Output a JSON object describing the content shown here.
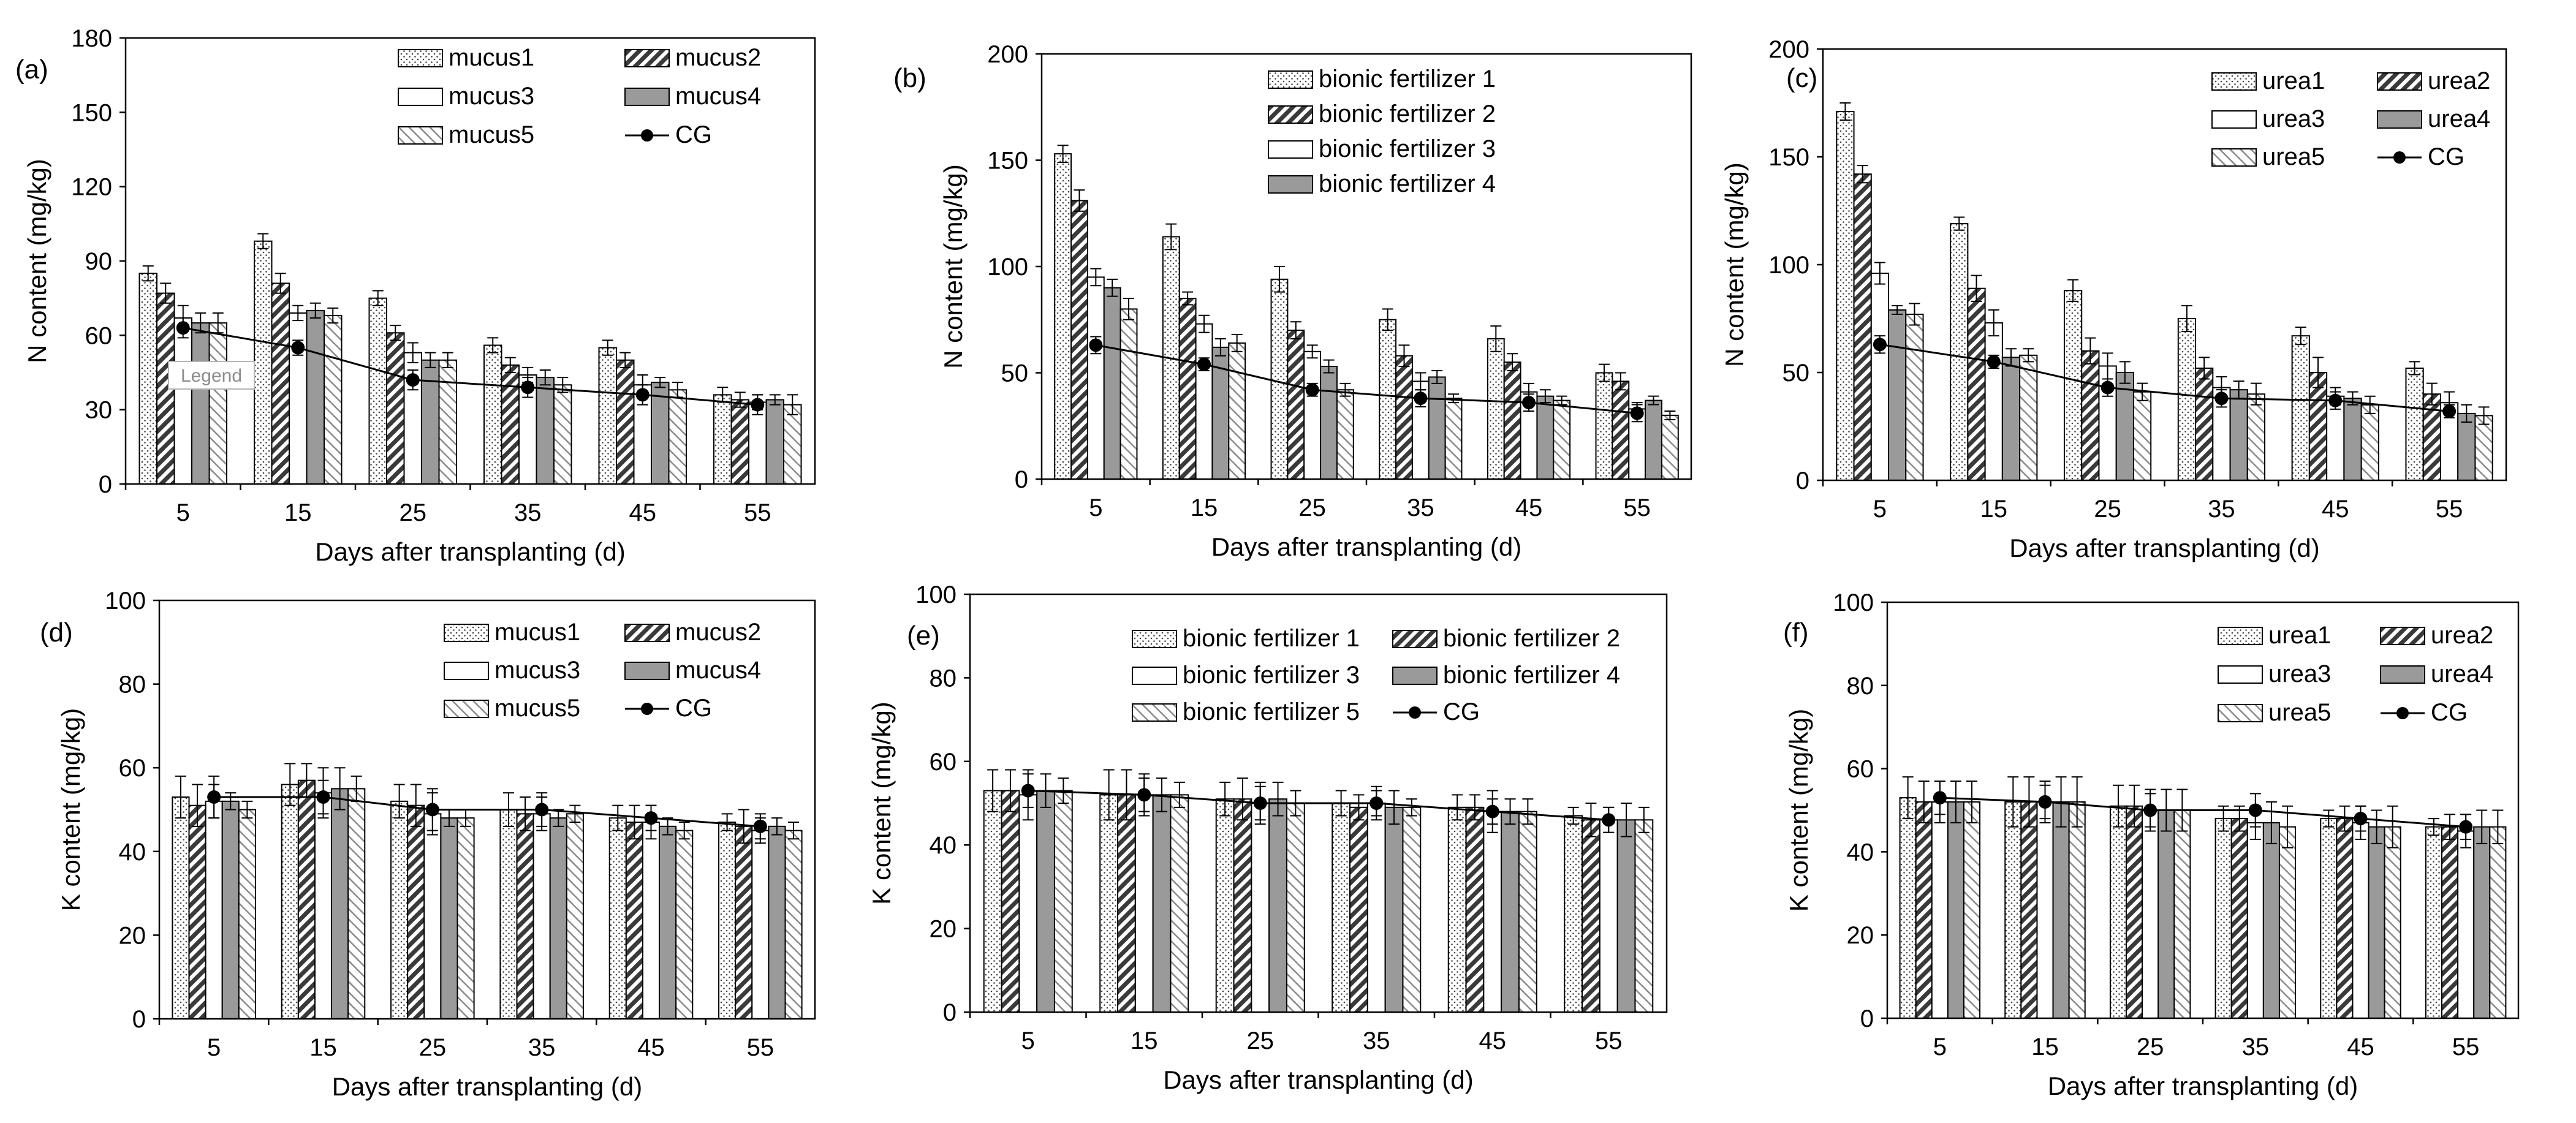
{
  "figure": {
    "watermark": "Legend"
  },
  "chart_data": [
    {
      "panel_label": "(a)",
      "type": "bar",
      "ylabel": "N content (mg/kg)",
      "xlabel": "Days after transplanting (d)",
      "categories": [
        "5",
        "15",
        "25",
        "35",
        "45",
        "55"
      ],
      "ylim": [
        0,
        180
      ],
      "yticks": [
        0,
        30,
        60,
        90,
        120,
        150,
        180
      ],
      "legend_position": "top-right",
      "grid": false,
      "series": [
        {
          "name": "mucus1",
          "pattern": "dots",
          "values": [
            85,
            98,
            75,
            56,
            55,
            36
          ],
          "errors": [
            3,
            3,
            3,
            3,
            3,
            3
          ]
        },
        {
          "name": "mucus2",
          "pattern": "diag",
          "values": [
            77,
            81,
            61,
            48,
            50,
            34
          ],
          "errors": [
            4,
            4,
            3,
            3,
            3,
            3
          ]
        },
        {
          "name": "mucus3",
          "pattern": "blank",
          "values": [
            67,
            69,
            53,
            44,
            40,
            33
          ],
          "errors": [
            5,
            3,
            4,
            3,
            4,
            3
          ]
        },
        {
          "name": "mucus4",
          "pattern": "gray",
          "values": [
            65,
            70,
            50,
            43,
            41,
            34
          ],
          "errors": [
            4,
            3,
            3,
            3,
            2,
            2
          ]
        },
        {
          "name": "mucus5",
          "pattern": "cross",
          "values": [
            65,
            68,
            50,
            40,
            38,
            32
          ],
          "errors": [
            4,
            3,
            3,
            3,
            3,
            4
          ]
        }
      ],
      "line": {
        "name": "CG",
        "values": [
          63,
          55,
          42,
          39,
          36,
          32
        ],
        "errors": [
          4,
          3,
          4,
          4,
          4,
          4
        ]
      }
    },
    {
      "panel_label": "(b)",
      "type": "bar",
      "ylabel": "N content (mg/kg)",
      "xlabel": "Days after transplanting (d)",
      "categories": [
        "5",
        "15",
        "25",
        "35",
        "45",
        "55"
      ],
      "ylim": [
        0,
        200
      ],
      "yticks": [
        0,
        50,
        100,
        150,
        200
      ],
      "legend_position": "top-right",
      "grid": false,
      "series": [
        {
          "name": "bionic fertilizer 1",
          "pattern": "dots",
          "values": [
            153,
            114,
            94,
            75,
            66,
            50
          ],
          "errors": [
            4,
            6,
            6,
            5,
            6,
            4
          ]
        },
        {
          "name": "bionic fertilizer 2",
          "pattern": "diag",
          "values": [
            131,
            85,
            70,
            58,
            55,
            46
          ],
          "errors": [
            5,
            3,
            4,
            5,
            4,
            4
          ]
        },
        {
          "name": "bionic fertilizer 3",
          "pattern": "blank",
          "values": [
            95,
            73,
            60,
            46,
            41,
            33
          ],
          "errors": [
            4,
            4,
            3,
            4,
            4,
            3
          ]
        },
        {
          "name": "bionic fertilizer 4",
          "pattern": "gray",
          "values": [
            90,
            62,
            53,
            48,
            39,
            37
          ],
          "errors": [
            4,
            4,
            3,
            3,
            3,
            2
          ]
        },
        {
          "name": "",
          "pattern": "cross",
          "values": [
            80,
            64,
            42,
            38,
            37,
            30
          ],
          "errors": [
            5,
            4,
            3,
            2,
            2,
            2
          ]
        }
      ],
      "line": {
        "name": "",
        "values": [
          63,
          54,
          42,
          38,
          36,
          31
        ],
        "errors": [
          4,
          3,
          3,
          4,
          4,
          4
        ]
      }
    },
    {
      "panel_label": "(c)",
      "type": "bar",
      "ylabel": "N content (mg/kg)",
      "xlabel": "Days after transplanting (d)",
      "categories": [
        "5",
        "15",
        "25",
        "35",
        "45",
        "55"
      ],
      "ylim": [
        0,
        200
      ],
      "yticks": [
        0,
        50,
        100,
        150,
        200
      ],
      "legend_position": "top-right",
      "grid": false,
      "series": [
        {
          "name": "urea1",
          "pattern": "dots",
          "values": [
            171,
            119,
            88,
            75,
            67,
            52
          ],
          "errors": [
            4,
            3,
            5,
            6,
            4,
            3
          ]
        },
        {
          "name": "urea2",
          "pattern": "diag",
          "values": [
            142,
            89,
            60,
            52,
            50,
            40
          ],
          "errors": [
            4,
            6,
            6,
            5,
            7,
            5
          ]
        },
        {
          "name": "urea3",
          "pattern": "blank",
          "values": [
            96,
            73,
            53,
            43,
            39,
            36
          ],
          "errors": [
            5,
            6,
            6,
            5,
            4,
            5
          ]
        },
        {
          "name": "urea4",
          "pattern": "gray",
          "values": [
            79,
            57,
            50,
            42,
            38,
            31
          ],
          "errors": [
            2,
            4,
            5,
            4,
            3,
            4
          ]
        },
        {
          "name": "urea5",
          "pattern": "cross",
          "values": [
            77,
            58,
            41,
            40,
            35,
            30
          ],
          "errors": [
            5,
            3,
            4,
            5,
            4,
            4
          ]
        }
      ],
      "line": {
        "name": "CG",
        "values": [
          63,
          55,
          43,
          38,
          37,
          32
        ],
        "errors": [
          4,
          3,
          4,
          4,
          4,
          3
        ]
      }
    },
    {
      "panel_label": "(d)",
      "type": "bar",
      "ylabel": "K content (mg/kg)",
      "xlabel": "Days after transplanting (d)",
      "categories": [
        "5",
        "15",
        "25",
        "35",
        "45",
        "55"
      ],
      "ylim": [
        0,
        100
      ],
      "yticks": [
        0,
        20,
        40,
        60,
        80,
        100
      ],
      "legend_position": "top-right",
      "grid": false,
      "series": [
        {
          "name": "mucus1",
          "pattern": "dots",
          "values": [
            53,
            56,
            52,
            50,
            48,
            47
          ],
          "errors": [
            5,
            5,
            4,
            4,
            3,
            2
          ]
        },
        {
          "name": "mucus2",
          "pattern": "diag",
          "values": [
            51,
            57,
            51,
            49,
            47,
            46
          ],
          "errors": [
            5,
            4,
            5,
            4,
            4,
            4
          ]
        },
        {
          "name": "mucus3",
          "pattern": "blank",
          "values": [
            52,
            54,
            49,
            49,
            47,
            45
          ],
          "errors": [
            4,
            6,
            5,
            4,
            4,
            3
          ]
        },
        {
          "name": "mucus4",
          "pattern": "gray",
          "values": [
            52,
            55,
            48,
            48,
            46,
            46
          ],
          "errors": [
            2,
            5,
            2,
            2,
            2,
            2
          ]
        },
        {
          "name": "mucus5",
          "pattern": "cross",
          "values": [
            50,
            55,
            48,
            49,
            45,
            45
          ],
          "errors": [
            2,
            3,
            2,
            2,
            2,
            2
          ]
        }
      ],
      "line": {
        "name": "CG",
        "values": [
          53,
          53,
          50,
          50,
          48,
          46
        ],
        "errors": [
          5,
          4,
          5,
          4,
          3,
          3
        ]
      }
    },
    {
      "panel_label": "(e)",
      "type": "bar",
      "ylabel": "K content (mg/kg)",
      "xlabel": "Days after transplanting (d)",
      "categories": [
        "5",
        "15",
        "25",
        "35",
        "45",
        "55"
      ],
      "ylim": [
        0,
        100
      ],
      "yticks": [
        0,
        20,
        40,
        60,
        80,
        100
      ],
      "legend_position": "top-right",
      "grid": false,
      "series": [
        {
          "name": "bionic fertilizer 1",
          "pattern": "dots",
          "values": [
            53,
            52,
            51,
            50,
            49,
            47
          ],
          "errors": [
            5,
            6,
            4,
            3,
            3,
            2
          ]
        },
        {
          "name": "bionic fertilizer 2",
          "pattern": "diag",
          "values": [
            53,
            52,
            51,
            49,
            49,
            46
          ],
          "errors": [
            5,
            6,
            5,
            3,
            3,
            4
          ]
        },
        {
          "name": "bionic fertilizer 3",
          "pattern": "blank",
          "values": [
            52,
            52,
            50,
            50,
            48,
            46
          ],
          "errors": [
            6,
            5,
            5,
            4,
            5,
            3
          ]
        },
        {
          "name": "bionic fertilizer 4",
          "pattern": "gray",
          "values": [
            53,
            52,
            51,
            49,
            48,
            46
          ],
          "errors": [
            4,
            4,
            4,
            4,
            3,
            4
          ]
        },
        {
          "name": "bionic fertilizer 5",
          "pattern": "cross",
          "values": [
            53,
            52,
            50,
            49,
            48,
            46
          ],
          "errors": [
            3,
            3,
            3,
            2,
            3,
            3
          ]
        }
      ],
      "line": {
        "name": "CG",
        "values": [
          53,
          52,
          50,
          50,
          48,
          46
        ],
        "errors": [
          4,
          4,
          4,
          3,
          3,
          3
        ]
      }
    },
    {
      "panel_label": "(f)",
      "type": "bar",
      "ylabel": "K content (mg/kg)",
      "xlabel": "Days after transplanting (d)",
      "categories": [
        "5",
        "15",
        "25",
        "35",
        "45",
        "55"
      ],
      "ylim": [
        0,
        100
      ],
      "yticks": [
        0,
        20,
        40,
        60,
        80,
        100
      ],
      "legend_position": "top-right",
      "grid": false,
      "series": [
        {
          "name": "urea1",
          "pattern": "dots",
          "values": [
            53,
            52,
            51,
            48,
            48,
            46
          ],
          "errors": [
            5,
            6,
            5,
            3,
            2,
            2
          ]
        },
        {
          "name": "urea2",
          "pattern": "diag",
          "values": [
            52,
            52,
            51,
            48,
            48,
            46
          ],
          "errors": [
            5,
            6,
            5,
            3,
            3,
            3
          ]
        },
        {
          "name": "urea3",
          "pattern": "blank",
          "values": [
            52,
            52,
            50,
            47,
            47,
            45
          ],
          "errors": [
            5,
            5,
            5,
            4,
            4,
            4
          ]
        },
        {
          "name": "urea4",
          "pattern": "gray",
          "values": [
            52,
            52,
            50,
            47,
            46,
            46
          ],
          "errors": [
            5,
            6,
            5,
            5,
            4,
            4
          ]
        },
        {
          "name": "urea5",
          "pattern": "cross",
          "values": [
            52,
            52,
            50,
            46,
            46,
            46
          ],
          "errors": [
            5,
            6,
            5,
            5,
            5,
            4
          ]
        }
      ],
      "line": {
        "name": "CG",
        "values": [
          53,
          52,
          50,
          50,
          48,
          46
        ],
        "errors": [
          4,
          4,
          4,
          4,
          3,
          3
        ]
      }
    }
  ]
}
